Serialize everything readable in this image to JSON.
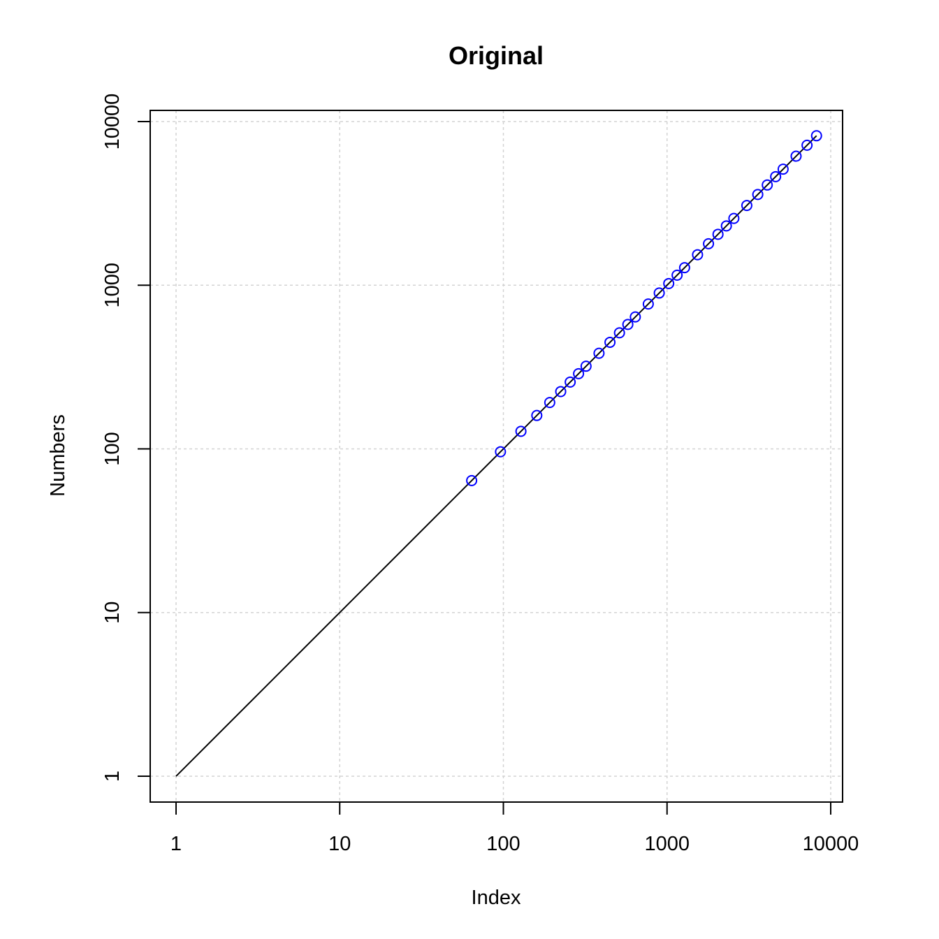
{
  "chart_data": {
    "type": "line",
    "title": "Original",
    "xlabel": "Index",
    "ylabel": "Numbers",
    "log_x": true,
    "log_y": true,
    "xlim": [
      0.7,
      13000
    ],
    "ylim": [
      0.7,
      13000
    ],
    "x_ticks": [
      1,
      10,
      100,
      1000,
      10000
    ],
    "y_ticks": [
      1,
      10,
      100,
      1000,
      10000
    ],
    "x_tick_labels": [
      "1",
      "10",
      "100",
      "1000",
      "10000"
    ],
    "y_tick_labels": [
      "1",
      "10",
      "100",
      "1000",
      "10000"
    ],
    "grid": true,
    "line": {
      "color": "#000000",
      "x": [
        1,
        8192
      ],
      "y": [
        1,
        8192
      ]
    },
    "points": {
      "color": "#0000ff",
      "marker": "open-circle",
      "x": [
        64,
        96,
        128,
        160,
        192,
        224,
        256,
        288,
        320,
        384,
        448,
        512,
        576,
        640,
        768,
        896,
        1024,
        1152,
        1280,
        1536,
        1792,
        2048,
        2304,
        2560,
        3072,
        3584,
        4096,
        4608,
        5120,
        6144,
        7168,
        8192
      ],
      "y": [
        64,
        96,
        128,
        160,
        192,
        224,
        256,
        288,
        320,
        384,
        448,
        512,
        576,
        640,
        768,
        896,
        1024,
        1152,
        1280,
        1536,
        1792,
        2048,
        2304,
        2560,
        3072,
        3584,
        4096,
        4608,
        5120,
        6144,
        7168,
        8192
      ]
    }
  }
}
